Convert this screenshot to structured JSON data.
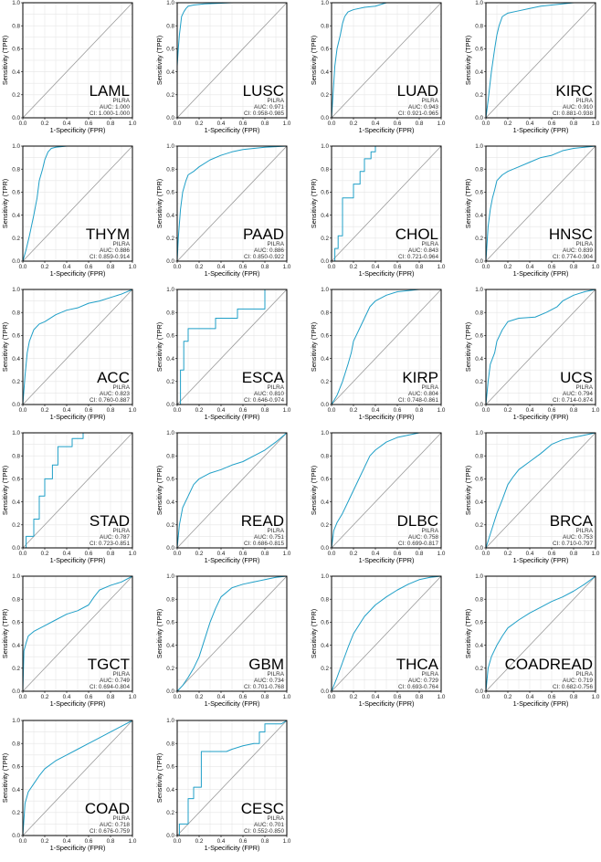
{
  "style": {
    "curve_color": "#1f9fc7",
    "diagonal_color": "#9a9a9a",
    "grid_color": "#e6e6e6",
    "frame_color": "#000000"
  },
  "axes": {
    "xlabel": "1-Specificity (FPR)",
    "ylabel": "Sensitivity (TPR)",
    "ticks": [
      "0.0",
      "0.2",
      "0.4",
      "0.6",
      "0.8",
      "1.0"
    ]
  },
  "chart_data": [
    {
      "type": "line",
      "title": "LAML",
      "gene": "PILRA",
      "auc": "AUC: 1.000",
      "ci": "CI: 1.000-1.000",
      "xlim": [
        0,
        1
      ],
      "ylim": [
        0,
        1
      ],
      "grid": true,
      "series": [
        {
          "x": [
            0,
            0,
            1
          ],
          "y": [
            0,
            1,
            1
          ]
        }
      ]
    },
    {
      "type": "line",
      "title": "LUSC",
      "gene": "PILRA",
      "auc": "AUC: 0.971",
      "ci": "CI: 0.958-0.985",
      "xlim": [
        0,
        1
      ],
      "ylim": [
        0,
        1
      ],
      "grid": true,
      "series": [
        {
          "x": [
            0,
            0,
            0.01,
            0.02,
            0.03,
            0.04,
            0.06,
            0.08,
            0.1,
            0.15,
            0.25,
            0.5,
            1
          ],
          "y": [
            0,
            0.45,
            0.6,
            0.72,
            0.8,
            0.88,
            0.92,
            0.95,
            0.97,
            0.98,
            0.99,
            1,
            1
          ]
        }
      ]
    },
    {
      "type": "line",
      "title": "LUAD",
      "gene": "PILRA",
      "auc": "AUC: 0.943",
      "ci": "CI: 0.921-0.965",
      "xlim": [
        0,
        1
      ],
      "ylim": [
        0,
        1
      ],
      "grid": true,
      "series": [
        {
          "x": [
            0,
            0.01,
            0.03,
            0.05,
            0.08,
            0.1,
            0.12,
            0.15,
            0.2,
            0.3,
            0.4,
            0.5,
            0.8,
            1
          ],
          "y": [
            0,
            0.15,
            0.45,
            0.6,
            0.72,
            0.82,
            0.88,
            0.92,
            0.94,
            0.96,
            0.97,
            1,
            1,
            1
          ]
        }
      ]
    },
    {
      "type": "line",
      "title": "KIRC",
      "gene": "PILRA",
      "auc": "AUC: 0.910",
      "ci": "CI: 0.881-0.938",
      "xlim": [
        0,
        1
      ],
      "ylim": [
        0,
        1
      ],
      "grid": true,
      "series": [
        {
          "x": [
            0,
            0.02,
            0.05,
            0.08,
            0.1,
            0.12,
            0.15,
            0.2,
            0.3,
            0.4,
            0.5,
            0.6,
            0.8,
            1
          ],
          "y": [
            0,
            0.15,
            0.4,
            0.6,
            0.72,
            0.8,
            0.88,
            0.91,
            0.93,
            0.95,
            0.97,
            0.98,
            1,
            1
          ]
        }
      ]
    },
    {
      "type": "line",
      "title": "THYM",
      "gene": "PILRA",
      "auc": "AUC: 0.886",
      "ci": "CI: 0.859-0.914",
      "xlim": [
        0,
        1
      ],
      "ylim": [
        0,
        1
      ],
      "grid": true,
      "series": [
        {
          "x": [
            0,
            0.03,
            0.06,
            0.1,
            0.13,
            0.15,
            0.18,
            0.2,
            0.23,
            0.26,
            0.3,
            0.4,
            0.6,
            1
          ],
          "y": [
            0,
            0.1,
            0.22,
            0.4,
            0.55,
            0.7,
            0.8,
            0.88,
            0.95,
            0.98,
            0.99,
            1,
            1,
            1
          ]
        }
      ]
    },
    {
      "type": "line",
      "title": "PAAD",
      "gene": "PILRA",
      "auc": "AUC: 0.886",
      "ci": "CI: 0.850-0.922",
      "xlim": [
        0,
        1
      ],
      "ylim": [
        0,
        1
      ],
      "grid": true,
      "series": [
        {
          "x": [
            0,
            0.01,
            0.03,
            0.05,
            0.08,
            0.1,
            0.15,
            0.2,
            0.3,
            0.4,
            0.5,
            0.6,
            0.8,
            1
          ],
          "y": [
            0,
            0.2,
            0.45,
            0.6,
            0.7,
            0.75,
            0.78,
            0.82,
            0.88,
            0.92,
            0.95,
            0.97,
            0.99,
            1
          ]
        }
      ]
    },
    {
      "type": "line",
      "title": "CHOL",
      "gene": "PILRA",
      "auc": "AUC: 0.843",
      "ci": "CI: 0.721-0.964",
      "xlim": [
        0,
        1
      ],
      "ylim": [
        0,
        1
      ],
      "grid": true,
      "series": [
        {
          "x": [
            0,
            0.03,
            0.03,
            0.06,
            0.06,
            0.1,
            0.1,
            0.2,
            0.2,
            0.26,
            0.26,
            0.3,
            0.3,
            0.36,
            0.36,
            0.4,
            0.4,
            1
          ],
          "y": [
            0,
            0,
            0.11,
            0.11,
            0.22,
            0.22,
            0.55,
            0.55,
            0.67,
            0.67,
            0.78,
            0.78,
            0.89,
            0.89,
            0.95,
            0.95,
            1,
            1
          ]
        }
      ]
    },
    {
      "type": "line",
      "title": "HNSC",
      "gene": "PILRA",
      "auc": "AUC: 0.839",
      "ci": "CI: 0.774-0.904",
      "xlim": [
        0,
        1
      ],
      "ylim": [
        0,
        1
      ],
      "grid": true,
      "series": [
        {
          "x": [
            0,
            0.02,
            0.04,
            0.06,
            0.08,
            0.1,
            0.15,
            0.2,
            0.3,
            0.4,
            0.5,
            0.6,
            0.7,
            0.8,
            1
          ],
          "y": [
            0,
            0.3,
            0.45,
            0.55,
            0.62,
            0.7,
            0.75,
            0.78,
            0.82,
            0.86,
            0.9,
            0.92,
            0.96,
            0.98,
            1
          ]
        }
      ]
    },
    {
      "type": "line",
      "title": "ACC",
      "gene": "PILRA",
      "auc": "AUC: 0.823",
      "ci": "CI: 0.760-0.887",
      "xlim": [
        0,
        1
      ],
      "ylim": [
        0,
        1
      ],
      "grid": true,
      "series": [
        {
          "x": [
            0,
            0.02,
            0.04,
            0.06,
            0.1,
            0.15,
            0.2,
            0.3,
            0.4,
            0.5,
            0.6,
            0.7,
            0.8,
            0.9,
            1
          ],
          "y": [
            0,
            0.25,
            0.45,
            0.55,
            0.65,
            0.7,
            0.72,
            0.78,
            0.82,
            0.84,
            0.88,
            0.9,
            0.93,
            0.96,
            1
          ]
        }
      ]
    },
    {
      "type": "line",
      "title": "ESCA",
      "gene": "PILRA",
      "auc": "AUC: 0.810",
      "ci": "CI: 0.646-0.974",
      "xlim": [
        0,
        1
      ],
      "ylim": [
        0,
        1
      ],
      "grid": true,
      "series": [
        {
          "x": [
            0,
            0.03,
            0.03,
            0.06,
            0.06,
            0.1,
            0.1,
            0.35,
            0.35,
            0.55,
            0.55,
            0.8,
            0.8,
            1
          ],
          "y": [
            0,
            0,
            0.3,
            0.3,
            0.55,
            0.55,
            0.66,
            0.66,
            0.75,
            0.75,
            0.83,
            0.83,
            1,
            1
          ]
        }
      ]
    },
    {
      "type": "line",
      "title": "KIRP",
      "gene": "PILRA",
      "auc": "AUC: 0.804",
      "ci": "CI: 0.748-0.861",
      "xlim": [
        0,
        1
      ],
      "ylim": [
        0,
        1
      ],
      "grid": true,
      "series": [
        {
          "x": [
            0,
            0.05,
            0.1,
            0.15,
            0.18,
            0.2,
            0.25,
            0.3,
            0.35,
            0.4,
            0.5,
            0.6,
            0.8,
            1
          ],
          "y": [
            0,
            0.08,
            0.2,
            0.35,
            0.45,
            0.55,
            0.65,
            0.75,
            0.85,
            0.9,
            0.95,
            0.98,
            1,
            1
          ]
        }
      ]
    },
    {
      "type": "line",
      "title": "UCS",
      "gene": "PILRA",
      "auc": "AUC: 0.794",
      "ci": "CI: 0.714-0.874",
      "xlim": [
        0,
        1
      ],
      "ylim": [
        0,
        1
      ],
      "grid": true,
      "series": [
        {
          "x": [
            0,
            0.02,
            0.04,
            0.08,
            0.1,
            0.15,
            0.2,
            0.3,
            0.45,
            0.55,
            0.65,
            0.7,
            0.8,
            0.9,
            1
          ],
          "y": [
            0,
            0.2,
            0.35,
            0.45,
            0.55,
            0.65,
            0.72,
            0.75,
            0.76,
            0.8,
            0.85,
            0.9,
            0.95,
            0.98,
            1
          ]
        }
      ]
    },
    {
      "type": "line",
      "title": "STAD",
      "gene": "PILRA",
      "auc": "AUC: 0.787",
      "ci": "CI: 0.723-0.851",
      "xlim": [
        0,
        1
      ],
      "ylim": [
        0,
        1
      ],
      "grid": true,
      "series": [
        {
          "x": [
            0,
            0.03,
            0.03,
            0.1,
            0.1,
            0.15,
            0.15,
            0.2,
            0.2,
            0.27,
            0.27,
            0.32,
            0.32,
            0.45,
            0.45,
            0.55,
            0.55,
            1
          ],
          "y": [
            0,
            0,
            0.1,
            0.1,
            0.25,
            0.25,
            0.45,
            0.45,
            0.6,
            0.6,
            0.72,
            0.72,
            0.88,
            0.88,
            0.95,
            0.95,
            1,
            1
          ]
        }
      ]
    },
    {
      "type": "line",
      "title": "READ",
      "gene": "PILRA",
      "auc": "AUC: 0.751",
      "ci": "CI: 0.686-0.815",
      "xlim": [
        0,
        1
      ],
      "ylim": [
        0,
        1
      ],
      "grid": true,
      "series": [
        {
          "x": [
            0,
            0.02,
            0.05,
            0.1,
            0.15,
            0.2,
            0.3,
            0.4,
            0.5,
            0.6,
            0.7,
            0.8,
            0.9,
            1
          ],
          "y": [
            0,
            0.2,
            0.35,
            0.45,
            0.55,
            0.6,
            0.65,
            0.68,
            0.72,
            0.75,
            0.8,
            0.85,
            0.92,
            1
          ]
        }
      ]
    },
    {
      "type": "line",
      "title": "DLBC",
      "gene": "PILRA",
      "auc": "AUC: 0.758",
      "ci": "CI: 0.699-0.817",
      "xlim": [
        0,
        1
      ],
      "ylim": [
        0,
        1
      ],
      "grid": true,
      "series": [
        {
          "x": [
            0,
            0.02,
            0.05,
            0.1,
            0.15,
            0.2,
            0.25,
            0.3,
            0.35,
            0.4,
            0.5,
            0.6,
            0.8,
            1
          ],
          "y": [
            0,
            0.15,
            0.22,
            0.3,
            0.4,
            0.5,
            0.6,
            0.7,
            0.8,
            0.85,
            0.92,
            0.96,
            1,
            1
          ]
        }
      ]
    },
    {
      "type": "line",
      "title": "BRCA",
      "gene": "PILRA",
      "auc": "AUC: 0.753",
      "ci": "CI: 0.710-0.797",
      "xlim": [
        0,
        1
      ],
      "ylim": [
        0,
        1
      ],
      "grid": true,
      "series": [
        {
          "x": [
            0,
            0.05,
            0.1,
            0.15,
            0.2,
            0.25,
            0.3,
            0.4,
            0.5,
            0.6,
            0.7,
            0.8,
            0.9,
            1
          ],
          "y": [
            0,
            0.15,
            0.3,
            0.42,
            0.55,
            0.62,
            0.68,
            0.75,
            0.82,
            0.9,
            0.94,
            0.96,
            0.98,
            1
          ]
        }
      ]
    },
    {
      "type": "line",
      "title": "TGCT",
      "gene": "PILRA",
      "auc": "AUC: 0.749",
      "ci": "CI: 0.694-0.804",
      "xlim": [
        0,
        1
      ],
      "ylim": [
        0,
        1
      ],
      "grid": true,
      "series": [
        {
          "x": [
            0,
            0.01,
            0.03,
            0.05,
            0.1,
            0.2,
            0.3,
            0.4,
            0.5,
            0.6,
            0.65,
            0.7,
            0.8,
            0.9,
            1
          ],
          "y": [
            0,
            0.35,
            0.42,
            0.48,
            0.52,
            0.57,
            0.62,
            0.67,
            0.7,
            0.75,
            0.82,
            0.88,
            0.92,
            0.95,
            1
          ]
        }
      ]
    },
    {
      "type": "line",
      "title": "GBM",
      "gene": "PILRA",
      "auc": "AUC: 0.734",
      "ci": "CI: 0.701-0.768",
      "xlim": [
        0,
        1
      ],
      "ylim": [
        0,
        1
      ],
      "grid": true,
      "series": [
        {
          "x": [
            0,
            0.05,
            0.1,
            0.15,
            0.2,
            0.25,
            0.3,
            0.35,
            0.4,
            0.5,
            0.6,
            0.7,
            0.8,
            0.9,
            1
          ],
          "y": [
            0,
            0.05,
            0.12,
            0.2,
            0.3,
            0.45,
            0.6,
            0.72,
            0.82,
            0.9,
            0.93,
            0.95,
            0.97,
            0.99,
            1
          ]
        }
      ]
    },
    {
      "type": "line",
      "title": "THCA",
      "gene": "PILRA",
      "auc": "AUC: 0.729",
      "ci": "CI: 0.693-0.764",
      "xlim": [
        0,
        1
      ],
      "ylim": [
        0,
        1
      ],
      "grid": true,
      "series": [
        {
          "x": [
            0,
            0.05,
            0.1,
            0.15,
            0.2,
            0.3,
            0.4,
            0.5,
            0.6,
            0.7,
            0.8,
            0.9,
            1
          ],
          "y": [
            0,
            0.12,
            0.25,
            0.38,
            0.5,
            0.65,
            0.75,
            0.82,
            0.88,
            0.93,
            0.97,
            0.99,
            1
          ]
        }
      ]
    },
    {
      "type": "line",
      "title": "COADREAD",
      "gene": "PILRA",
      "auc": "AUC: 0.719",
      "ci": "CI: 0.682-0.756",
      "xlim": [
        0,
        1
      ],
      "ylim": [
        0,
        1
      ],
      "grid": true,
      "series": [
        {
          "x": [
            0,
            0.02,
            0.05,
            0.1,
            0.15,
            0.2,
            0.3,
            0.4,
            0.5,
            0.6,
            0.7,
            0.8,
            0.9,
            1
          ],
          "y": [
            0,
            0.2,
            0.3,
            0.4,
            0.48,
            0.55,
            0.62,
            0.68,
            0.73,
            0.78,
            0.82,
            0.87,
            0.93,
            1
          ]
        }
      ]
    },
    {
      "type": "line",
      "title": "COAD",
      "gene": "PILRA",
      "auc": "AUC: 0.718",
      "ci": "CI: 0.676-0.759",
      "xlim": [
        0,
        1
      ],
      "ylim": [
        0,
        1
      ],
      "grid": true,
      "series": [
        {
          "x": [
            0,
            0.02,
            0.05,
            0.1,
            0.15,
            0.2,
            0.3,
            0.4,
            0.5,
            0.6,
            0.7,
            0.8,
            0.9,
            1
          ],
          "y": [
            0,
            0.28,
            0.38,
            0.45,
            0.52,
            0.58,
            0.65,
            0.7,
            0.75,
            0.8,
            0.85,
            0.9,
            0.95,
            1
          ]
        }
      ]
    },
    {
      "type": "line",
      "title": "CESC",
      "gene": "PILRA",
      "auc": "AUC: 0.701",
      "ci": "CI: 0.552-0.850",
      "xlim": [
        0,
        1
      ],
      "ylim": [
        0,
        1
      ],
      "grid": true,
      "series": [
        {
          "x": [
            0,
            0.02,
            0.02,
            0.1,
            0.1,
            0.15,
            0.15,
            0.22,
            0.22,
            0.45,
            0.5,
            0.6,
            0.7,
            0.75,
            0.75,
            0.8,
            0.8,
            0.95,
            1
          ],
          "y": [
            0,
            0,
            0.1,
            0.1,
            0.32,
            0.32,
            0.42,
            0.42,
            0.73,
            0.73,
            0.75,
            0.78,
            0.8,
            0.8,
            0.9,
            0.9,
            0.97,
            0.97,
            1
          ]
        }
      ]
    }
  ]
}
